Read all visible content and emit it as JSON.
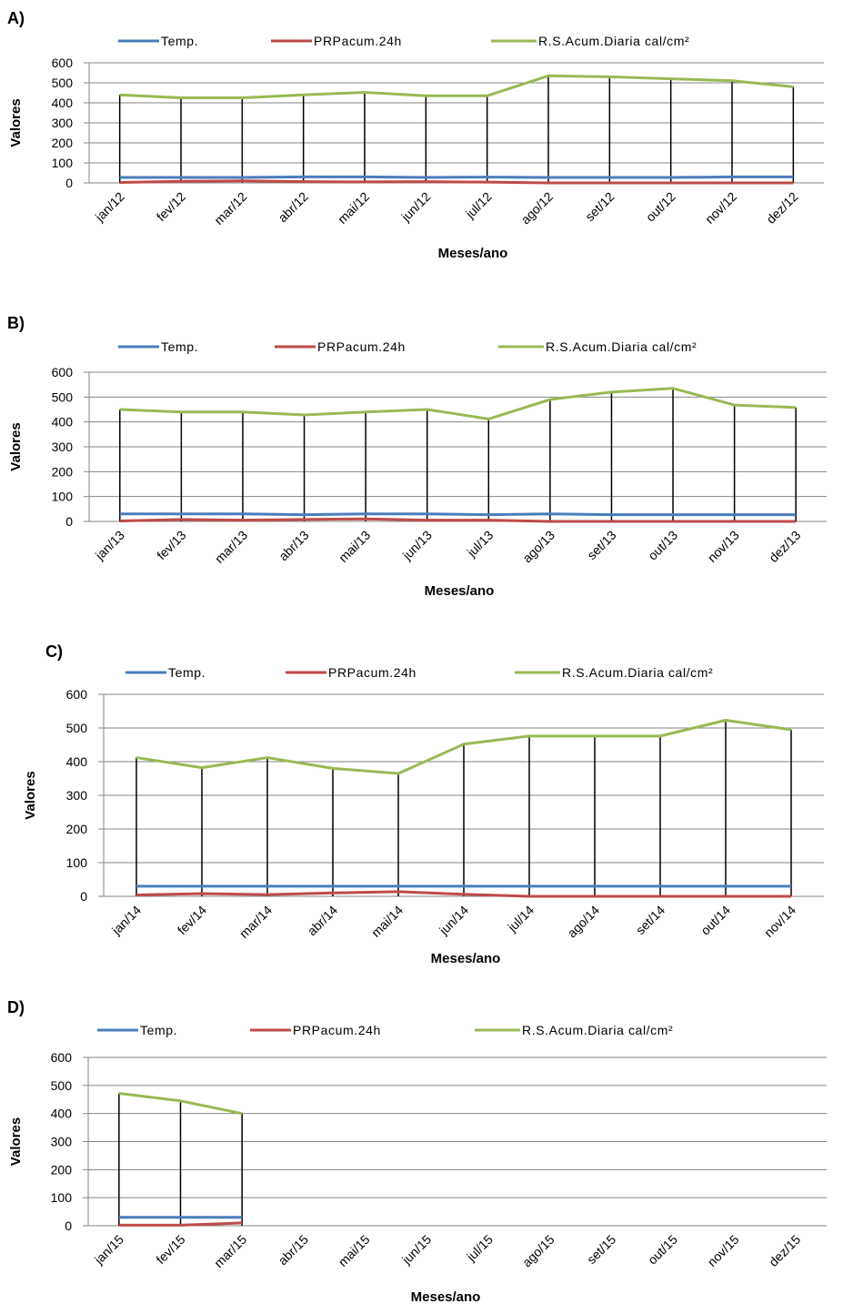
{
  "colors": {
    "temp": "#4a7ebb",
    "prp": "#be4b48",
    "rs": "#98b954",
    "grid": "#868686",
    "drop": "#000000"
  },
  "legend": [
    "Temp.",
    "PRPacum.24h",
    "R.S.Acum.Diaria cal/cm²"
  ],
  "chart_data": [
    {
      "type": "line",
      "panel_label": "A)",
      "xlabel": "Meses/ano",
      "ylabel": "Valores",
      "ylim": [
        0,
        600
      ],
      "yticks": [
        0,
        100,
        200,
        300,
        400,
        500,
        600
      ],
      "grid": true,
      "drop_lines": true,
      "legend_position": "top",
      "categories": [
        "jan/12",
        "fev/12",
        "mar/12",
        "abr/12",
        "mai/12",
        "jun/12",
        "jul/12",
        "ago/12",
        "set/12",
        "out/12",
        "nov/12",
        "dez/12"
      ],
      "series": [
        {
          "name": "Temp.",
          "values": [
            27,
            27,
            27,
            30,
            30,
            27,
            29,
            27,
            27,
            27,
            30,
            30
          ]
        },
        {
          "name": "PRPacum.24h",
          "values": [
            2,
            8,
            10,
            6,
            5,
            6,
            4,
            0,
            0,
            0,
            0,
            0
          ]
        },
        {
          "name": "R.S.Acum.Diaria cal/cm²",
          "values": [
            440,
            425,
            425,
            440,
            452,
            435,
            435,
            535,
            530,
            520,
            510,
            480
          ]
        }
      ]
    },
    {
      "type": "line",
      "panel_label": "B)",
      "xlabel": "Meses/ano",
      "ylabel": "Valores",
      "ylim": [
        0,
        600
      ],
      "yticks": [
        0,
        100,
        200,
        300,
        400,
        500,
        600
      ],
      "grid": true,
      "drop_lines": true,
      "legend_position": "top",
      "categories": [
        "jan/13",
        "fev/13",
        "mar/13",
        "abr/13",
        "mai/13",
        "jun/13",
        "jul/13",
        "ago/13",
        "set/13",
        "out/13",
        "nov/13",
        "dez/13"
      ],
      "series": [
        {
          "name": "Temp.",
          "values": [
            30,
            30,
            30,
            27,
            30,
            30,
            27,
            30,
            27,
            27,
            27,
            27
          ]
        },
        {
          "name": "PRPacum.24h",
          "values": [
            2,
            8,
            5,
            8,
            10,
            5,
            5,
            0,
            0,
            0,
            0,
            0
          ]
        },
        {
          "name": "R.S.Acum.Diaria cal/cm²",
          "values": [
            450,
            440,
            440,
            428,
            440,
            450,
            412,
            490,
            520,
            535,
            468,
            458
          ]
        }
      ]
    },
    {
      "type": "line",
      "panel_label": "C)",
      "xlabel": "Meses/ano",
      "ylabel": "Valores",
      "ylim": [
        0,
        600
      ],
      "yticks": [
        0,
        100,
        200,
        300,
        400,
        500,
        600
      ],
      "grid": true,
      "drop_lines": true,
      "legend_position": "top",
      "categories": [
        "jan/14",
        "fev/14",
        "mar/14",
        "abr/14",
        "mai/14",
        "jun/14",
        "jul/14",
        "ago/14",
        "set/14",
        "out/14",
        "nov/14"
      ],
      "series": [
        {
          "name": "Temp.",
          "values": [
            30,
            30,
            30,
            30,
            30,
            30,
            30,
            30,
            30,
            30,
            30
          ]
        },
        {
          "name": "PRPacum.24h",
          "values": [
            4,
            8,
            5,
            10,
            14,
            6,
            0,
            0,
            0,
            0,
            0
          ]
        },
        {
          "name": "R.S.Acum.Diaria cal/cm²",
          "values": [
            412,
            382,
            412,
            380,
            365,
            452,
            476,
            476,
            476,
            523,
            495
          ]
        }
      ]
    },
    {
      "type": "line",
      "panel_label": "D)",
      "xlabel": "Meses/ano",
      "ylabel": "Valores",
      "ylim": [
        0,
        600
      ],
      "yticks": [
        0,
        100,
        200,
        300,
        400,
        500,
        600
      ],
      "grid": true,
      "drop_lines": true,
      "legend_position": "top",
      "categories": [
        "jan/15",
        "fev/15",
        "mar/15",
        "abr/15",
        "mai/15",
        "jun/15",
        "jul/15",
        "ago/15",
        "set/15",
        "out/15",
        "nov/15",
        "dez/15"
      ],
      "series": [
        {
          "name": "Temp.",
          "values": [
            30,
            30,
            30,
            null,
            null,
            null,
            null,
            null,
            null,
            null,
            null,
            null
          ]
        },
        {
          "name": "PRPacum.24h",
          "values": [
            2,
            2,
            10,
            null,
            null,
            null,
            null,
            null,
            null,
            null,
            null,
            null
          ]
        },
        {
          "name": "R.S.Acum.Diaria cal/cm²",
          "values": [
            472,
            445,
            400,
            null,
            null,
            null,
            null,
            null,
            null,
            null,
            null,
            null
          ]
        }
      ]
    }
  ]
}
